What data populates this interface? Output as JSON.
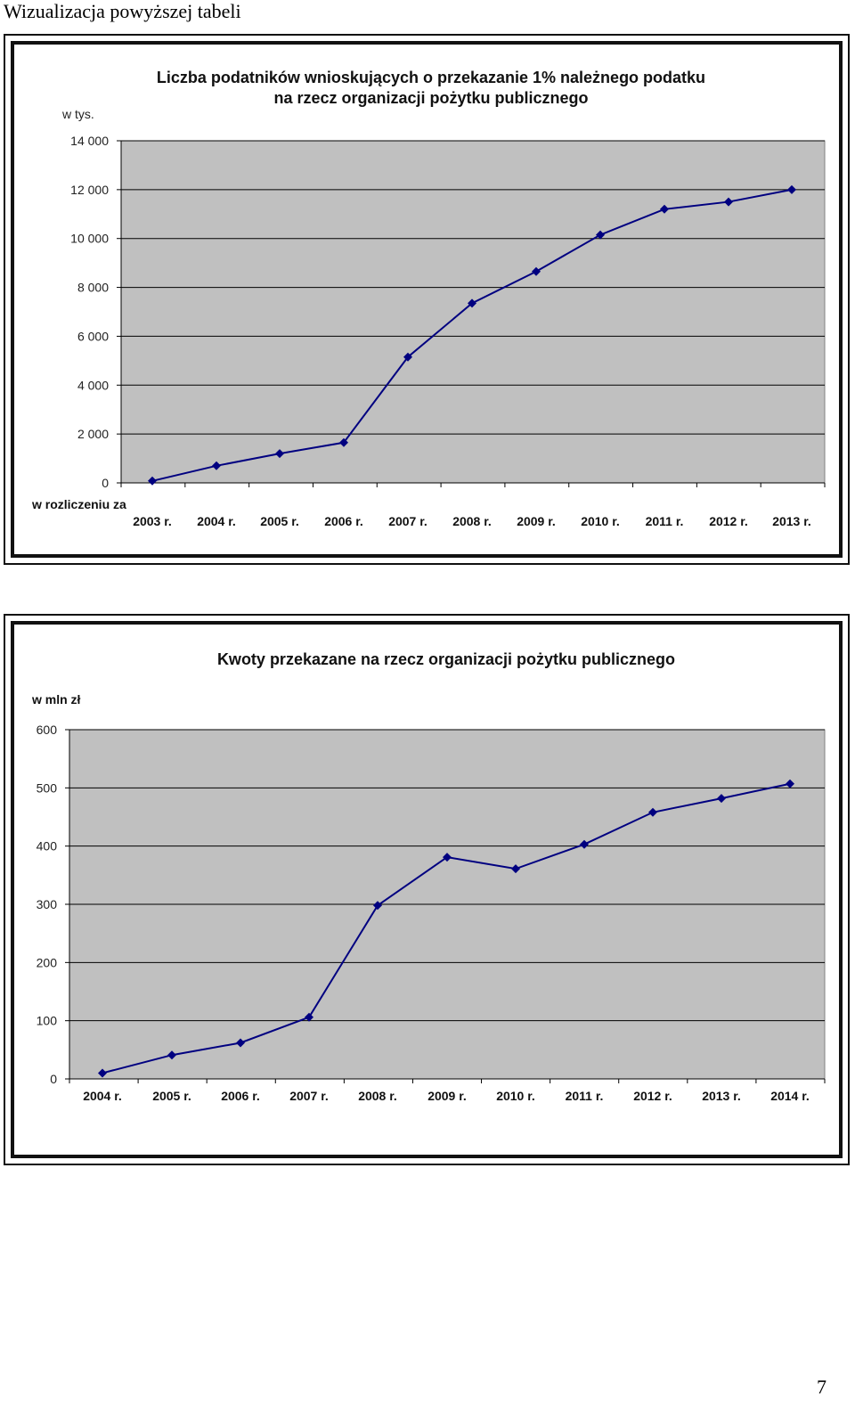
{
  "page": {
    "heading": "Wizualizacja powyższej tabeli",
    "page_number": "7"
  },
  "chart_data": [
    {
      "type": "line",
      "title_lines": [
        "Liczba podatników wnioskujących o przekazanie 1% należnego podatku",
        "na rzecz organizacji pożytku publicznego"
      ],
      "unit_label": "w tys.",
      "xlabel": "w rozliczeniu za",
      "categories": [
        "2003 r.",
        "2004 r.",
        "2005 r.",
        "2006 r.",
        "2007 r.",
        "2008 r.",
        "2009 r.",
        "2010 r.",
        "2011 r.",
        "2012 r.",
        "2013 r."
      ],
      "values": [
        80,
        700,
        1200,
        1650,
        5150,
        7350,
        8650,
        10150,
        11200,
        11500,
        12000
      ],
      "ylim": [
        0,
        14000
      ],
      "yticks": [
        0,
        2000,
        4000,
        6000,
        8000,
        10000,
        12000,
        14000
      ],
      "ytick_labels": [
        "0",
        "2 000",
        "4 000",
        "6 000",
        "8 000",
        "10 000",
        "12 000",
        "14 000"
      ],
      "grid": true,
      "colors": {
        "plot_bg": "#c0c0c0",
        "line": "#000080",
        "grid": "#000000"
      }
    },
    {
      "type": "line",
      "title_lines": [
        "Kwoty przekazane na rzecz organizacji pożytku publicznego"
      ],
      "unit_label": "w mln zł",
      "xlabel": "",
      "categories": [
        "2004 r.",
        "2005 r.",
        "2006 r.",
        "2007 r.",
        "2008 r.",
        "2009 r.",
        "2010 r.",
        "2011 r.",
        "2012 r.",
        "2013 r.",
        "2014 r."
      ],
      "values": [
        10,
        41,
        62,
        106,
        298,
        381,
        361,
        403,
        458,
        482,
        507
      ],
      "ylim": [
        0,
        600
      ],
      "yticks": [
        0,
        100,
        200,
        300,
        400,
        500,
        600
      ],
      "ytick_labels": [
        "0",
        "100",
        "200",
        "300",
        "400",
        "500",
        "600"
      ],
      "grid": true,
      "colors": {
        "plot_bg": "#c0c0c0",
        "line": "#000080",
        "grid": "#000000"
      }
    }
  ]
}
